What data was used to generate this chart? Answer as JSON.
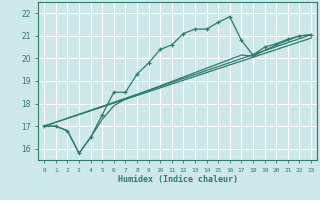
{
  "title": "",
  "xlabel": "Humidex (Indice chaleur)",
  "bg_color": "#cce8e8",
  "grid_color": "#ffffff",
  "line_color": "#2d7a6e",
  "xlim": [
    -0.5,
    23.5
  ],
  "ylim": [
    15.5,
    22.5
  ],
  "xticks": [
    0,
    1,
    2,
    3,
    4,
    5,
    6,
    7,
    8,
    9,
    10,
    11,
    12,
    13,
    14,
    15,
    16,
    17,
    18,
    19,
    20,
    21,
    22,
    23
  ],
  "yticks": [
    16,
    17,
    18,
    19,
    20,
    21,
    22
  ],
  "series": [
    {
      "x": [
        0,
        1,
        2,
        3,
        4,
        5,
        6,
        7,
        8,
        9,
        10,
        11,
        12,
        13,
        14,
        15,
        16,
        17,
        18,
        19,
        20,
        21,
        22,
        23
      ],
      "y": [
        17.0,
        17.0,
        16.8,
        15.8,
        16.5,
        17.5,
        18.5,
        18.5,
        19.3,
        19.8,
        20.4,
        20.6,
        21.1,
        21.3,
        21.3,
        21.6,
        21.85,
        20.8,
        20.15,
        20.5,
        20.65,
        20.85,
        21.0,
        21.05
      ],
      "marker": "+"
    },
    {
      "x": [
        0,
        1,
        2,
        3,
        4,
        5,
        6,
        7,
        17,
        18,
        19,
        20,
        21,
        22,
        23
      ],
      "y": [
        17.0,
        17.0,
        16.8,
        15.8,
        16.5,
        17.3,
        17.9,
        18.2,
        20.15,
        20.1,
        20.35,
        20.6,
        20.8,
        21.0,
        21.05
      ],
      "marker": null
    },
    {
      "x": [
        0,
        23
      ],
      "y": [
        17.0,
        20.9
      ],
      "marker": null
    },
    {
      "x": [
        0,
        23
      ],
      "y": [
        17.0,
        21.05
      ],
      "marker": null
    }
  ]
}
